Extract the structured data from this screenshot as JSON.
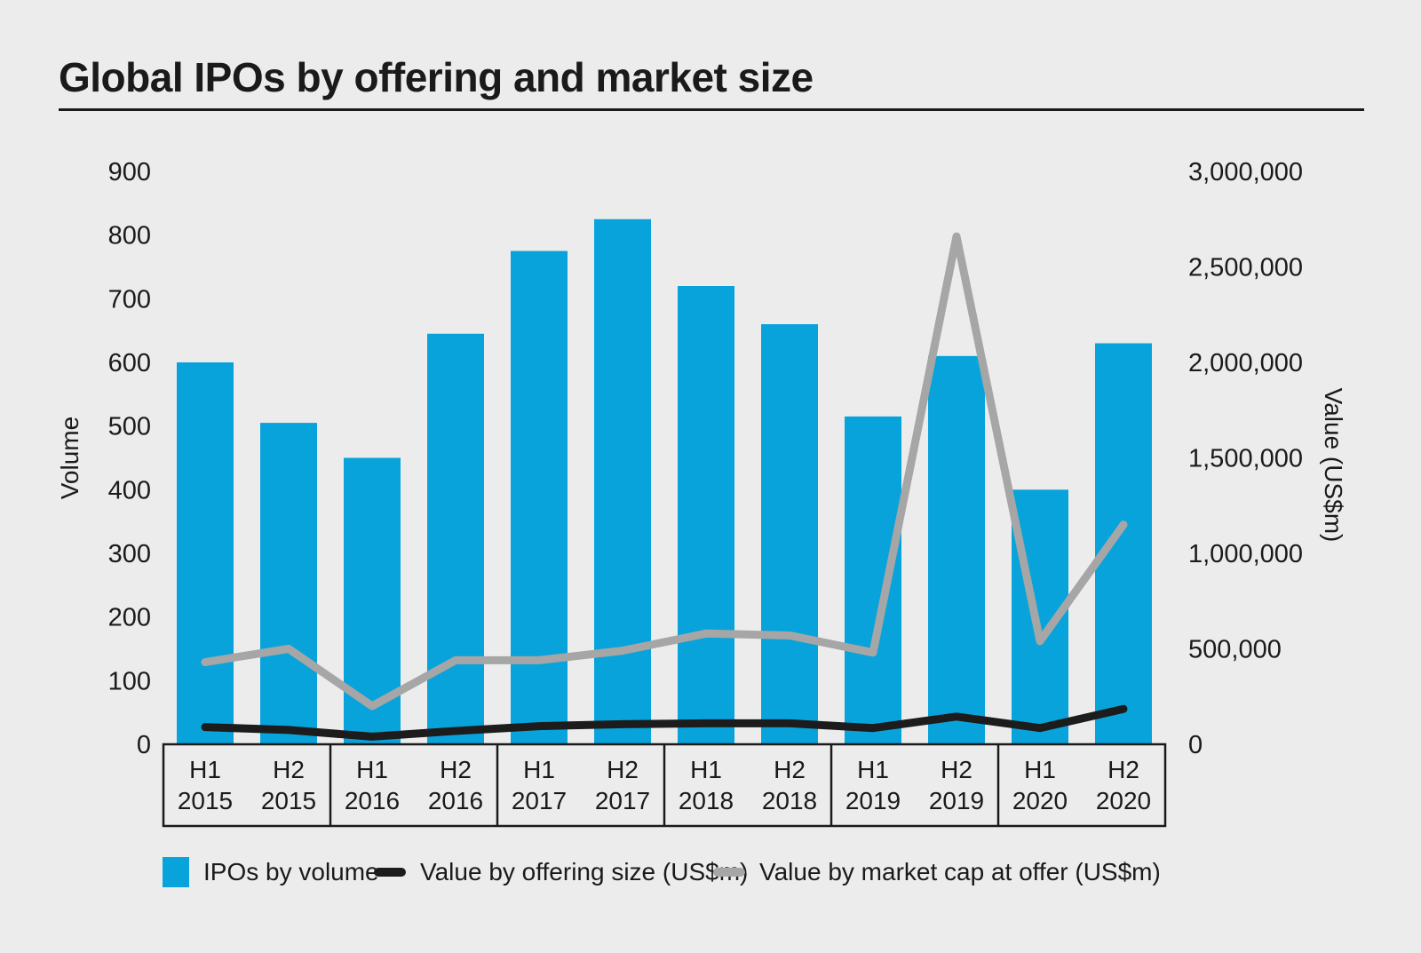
{
  "title": "Global IPOs by offering and market size",
  "colors": {
    "background": "#ECECEC",
    "ink": "#1A1A1A",
    "bar_blue": "#09A3DB",
    "line_black": "#1C1C1C",
    "line_gray": "#A6A6A6"
  },
  "legend": [
    {
      "label": "IPOs by volume",
      "swatch": "blue-bar"
    },
    {
      "label": "Value by offering size (US$m)",
      "swatch": "black-line"
    },
    {
      "label": "Value by market cap at offer (US$m)",
      "swatch": "gray-line"
    }
  ],
  "chart_data": {
    "type": "bar",
    "subtype": "bar-line-combo",
    "title": "Global IPOs by offering and market size",
    "grid": false,
    "legend_position": "bottom",
    "categories": [
      {
        "half": "H1",
        "year": "2015"
      },
      {
        "half": "H2",
        "year": "2015"
      },
      {
        "half": "H1",
        "year": "2016"
      },
      {
        "half": "H2",
        "year": "2016"
      },
      {
        "half": "H1",
        "year": "2017"
      },
      {
        "half": "H2",
        "year": "2017"
      },
      {
        "half": "H1",
        "year": "2018"
      },
      {
        "half": "H2",
        "year": "2018"
      },
      {
        "half": "H1",
        "year": "2019"
      },
      {
        "half": "H2",
        "year": "2019"
      },
      {
        "half": "H1",
        "year": "2020"
      },
      {
        "half": "H2",
        "year": "2020"
      }
    ],
    "series": [
      {
        "name": "IPOs by volume",
        "type": "bar",
        "axis": "left",
        "color_key": "bar_blue",
        "values": [
          600,
          505,
          450,
          645,
          775,
          825,
          720,
          660,
          515,
          610,
          400,
          630
        ]
      },
      {
        "name": "Value by offering size (US$m)",
        "type": "line",
        "axis": "right",
        "color_key": "line_black",
        "values": [
          90000,
          75000,
          40000,
          70000,
          95000,
          105000,
          110000,
          110000,
          85000,
          145000,
          85000,
          185000
        ]
      },
      {
        "name": "Value by market cap at offer (US$m)",
        "type": "line",
        "axis": "right",
        "color_key": "line_gray",
        "values": [
          430000,
          500000,
          200000,
          440000,
          440000,
          490000,
          580000,
          570000,
          480000,
          2660000,
          540000,
          1150000
        ]
      }
    ],
    "left_axis": {
      "label": "Volume",
      "min": 0,
      "max": 900,
      "step": 100,
      "ticks": [
        "0",
        "100",
        "200",
        "300",
        "400",
        "500",
        "600",
        "700",
        "800",
        "900"
      ]
    },
    "right_axis": {
      "label": "Value (US$m)",
      "min": 0,
      "max": 3000000,
      "step": 500000,
      "ticks": [
        "0",
        "500,000",
        "1,000,000",
        "1,500,000",
        "2,000,000",
        "2,500,000",
        "3,000,000"
      ]
    }
  }
}
